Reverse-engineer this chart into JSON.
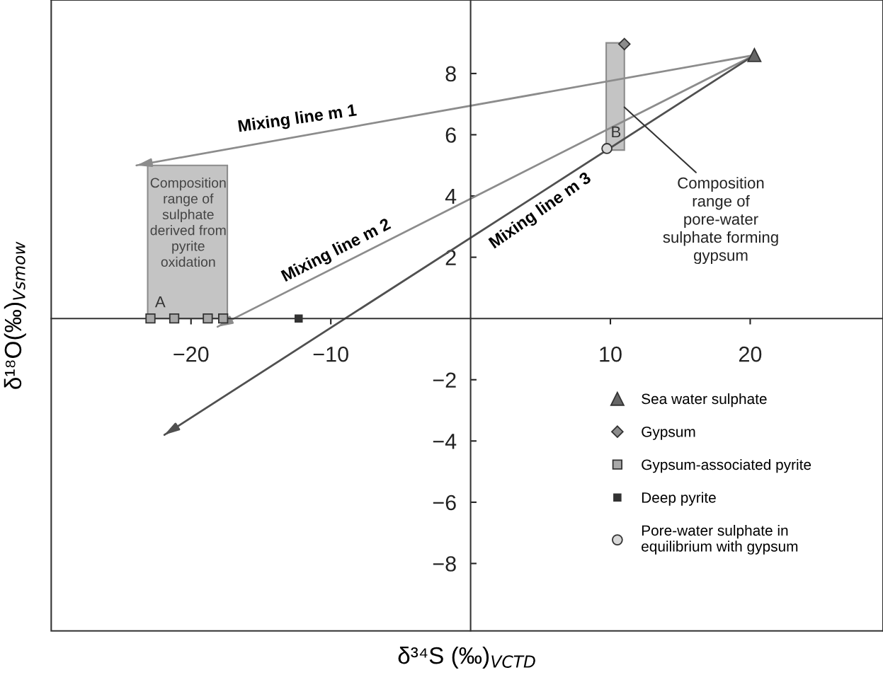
{
  "chart_data": {
    "type": "scatter",
    "xlabel": "δ³⁴S (‰)$_{VCTD}$",
    "ylabel": "δ¹⁸O(‰)$_{Vsmow}$",
    "xlim": [
      -30,
      29.5
    ],
    "ylim": [
      -10.2,
      10.4
    ],
    "xticks": [
      -20,
      -10,
      10,
      20
    ],
    "yticks": [
      -8,
      -6,
      -4,
      -2,
      2,
      4,
      6,
      8
    ],
    "legend": "bottom right",
    "series": [
      {
        "type": "bar",
        "x": [
          -20.25
        ],
        "values": [
          5.0
        ],
        "color": "#c4c4c4"
      },
      {
        "type": "bar",
        "x": [
          10.35
        ],
        "values": [
          3.5
        ],
        "base": [
          5.5
        ],
        "color": "#c4c4c4"
      },
      {
        "type": "line",
        "x": [
          20.3,
          -23.9
        ],
        "values": [
          8.6,
          5.0
        ],
        "color": "#8c8c8c"
      },
      {
        "type": "line",
        "x": [
          20.3,
          -18.1
        ],
        "values": [
          8.6,
          -0.27
        ],
        "color": "#8c8c8c"
      },
      {
        "type": "line",
        "x": [
          20.3,
          -21.9
        ],
        "values": [
          8.6,
          -3.8
        ],
        "color": "#505050"
      },
      {
        "name": "Sea water sulphate",
        "marker": "triangle",
        "color": "#666666",
        "x": [
          20.3
        ],
        "values": [
          8.6
        ]
      },
      {
        "name": "Gypsum",
        "marker": "diamond",
        "color": "#8c8c8c",
        "x": [
          11.0
        ],
        "values": [
          8.96
        ]
      },
      {
        "name": "Gypsum-associated pyrite",
        "marker": "square",
        "color": "#a8a8a8",
        "x": [
          -22.9,
          -21.2,
          -18.8,
          -17.7
        ],
        "values": [
          0,
          0,
          0,
          0
        ]
      },
      {
        "name": "Deep pyrite",
        "marker": "square",
        "color": "#333333",
        "x": [
          -12.3
        ],
        "values": [
          0
        ]
      },
      {
        "name": "Pore-water sulphate in\nequilibrium with gypsum",
        "marker": "circle",
        "color": "#d8d8d8",
        "x": [
          9.75
        ],
        "values": [
          5.55
        ]
      }
    ],
    "annotations": [
      "Mixing line m 1",
      "Mixing line m 2",
      "Mixing line m 3",
      "Composition\nrange of\nsulphate\nderived from\npyrite\noxidation",
      "A",
      "B",
      {
        "text": "Composition\nrange of\npore-water\nsulphate forming\ngypsum",
        "x": 11.0,
        "y": 6.9
      }
    ]
  }
}
